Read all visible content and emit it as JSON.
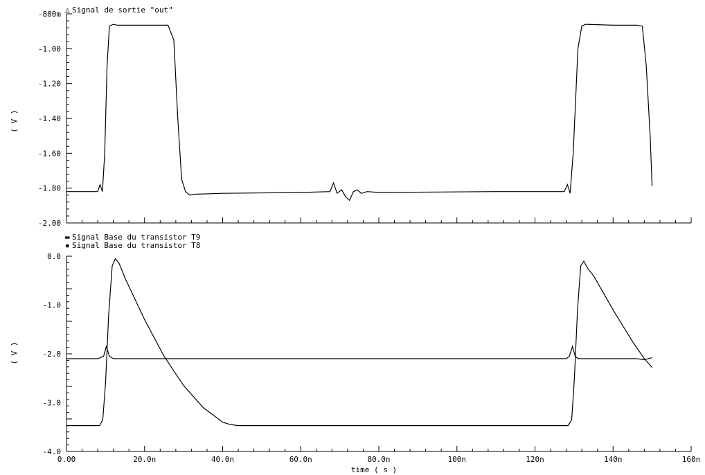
{
  "chart_data": [
    {
      "type": "line",
      "legend": [
        {
          "marker": "△",
          "label": "Signal de sortie \"out\""
        }
      ],
      "ylabel": "( V )",
      "ylim": [
        -2.0,
        -0.8
      ],
      "yticks": [
        {
          "value": -0.8,
          "label": "-800m"
        },
        {
          "value": -1.0,
          "label": "-1.00"
        },
        {
          "value": -1.2,
          "label": "-1.20"
        },
        {
          "value": -1.4,
          "label": "-1.40"
        },
        {
          "value": -1.6,
          "label": "-1.60"
        },
        {
          "value": -1.8,
          "label": "-1.80"
        },
        {
          "value": -2.0,
          "label": "-2.00"
        }
      ],
      "xlim": [
        0,
        160
      ],
      "x_unit": "ns",
      "series": [
        {
          "name": "Signal de sortie \"out\"",
          "x": [
            0,
            8,
            8.6,
            9.2,
            9.8,
            10.4,
            11,
            12,
            13,
            20,
            26,
            27.5,
            28.5,
            29.5,
            30.5,
            31.5,
            33,
            40,
            60,
            67.5,
            68.4,
            69.3,
            70.5,
            71.5,
            72.5,
            73.5,
            74.5,
            75.5,
            77,
            80,
            110,
            127.5,
            128.3,
            129,
            129.8,
            131,
            132,
            133,
            140,
            146,
            147.5,
            148.5,
            149.5,
            150
          ],
          "y": [
            -1.82,
            -1.82,
            -1.78,
            -1.82,
            -1.6,
            -1.1,
            -0.87,
            -0.86,
            -0.865,
            -0.865,
            -0.865,
            -0.95,
            -1.4,
            -1.75,
            -1.82,
            -1.84,
            -1.835,
            -1.83,
            -1.825,
            -1.82,
            -1.77,
            -1.83,
            -1.81,
            -1.85,
            -1.87,
            -1.82,
            -1.81,
            -1.83,
            -1.82,
            -1.825,
            -1.82,
            -1.82,
            -1.78,
            -1.83,
            -1.6,
            -1.0,
            -0.87,
            -0.86,
            -0.865,
            -0.865,
            -0.87,
            -1.1,
            -1.5,
            -1.79
          ]
        }
      ]
    },
    {
      "type": "line",
      "legend": [
        {
          "marker": "▬",
          "label": "Signal Base du transistor T9"
        },
        {
          "marker": "▪",
          "label": "Signal Base du transistor T8"
        }
      ],
      "ylabel": "( V )",
      "xlabel": "time ( s )",
      "ylim": [
        -4.0,
        0.0
      ],
      "yticks": [
        {
          "value": 0,
          "label": "0.0"
        },
        {
          "value": -1,
          "label": "-1.0"
        },
        {
          "value": -2,
          "label": "-2.0"
        },
        {
          "value": -3,
          "label": "-3.0"
        },
        {
          "value": -4,
          "label": "-4.0"
        }
      ],
      "xlim": [
        0,
        160
      ],
      "x_unit": "ns",
      "xticks": [
        {
          "value": 0,
          "label": "0.00"
        },
        {
          "value": 20,
          "label": "20.0n"
        },
        {
          "value": 40,
          "label": "40.0n"
        },
        {
          "value": 60,
          "label": "60.0n"
        },
        {
          "value": 80,
          "label": "80.0n"
        },
        {
          "value": 100,
          "label": "100n"
        },
        {
          "value": 120,
          "label": "120n"
        },
        {
          "value": 140,
          "label": "140n"
        },
        {
          "value": 160,
          "label": "160n"
        }
      ],
      "series": [
        {
          "name": "Signal Base du transistor T9",
          "x": [
            0,
            8,
            9.5,
            10.2,
            11,
            12,
            14,
            20,
            40,
            60,
            80,
            100,
            110,
            120,
            128,
            128.8,
            129.6,
            130.3,
            131,
            133,
            140,
            146,
            148,
            150
          ],
          "y": [
            -2.1,
            -2.1,
            -2.05,
            -1.85,
            -2.05,
            -2.1,
            -2.1,
            -2.1,
            -2.1,
            -2.1,
            -2.1,
            -2.1,
            -2.1,
            -2.1,
            -2.1,
            -2.05,
            -1.85,
            -2.05,
            -2.1,
            -2.1,
            -2.1,
            -2.1,
            -2.12,
            -2.08
          ]
        },
        {
          "name": "Signal Base du transistor T8",
          "x": [
            0,
            8.5,
            9.3,
            10,
            10.8,
            11.7,
            12.5,
            13.5,
            15,
            20,
            25,
            30,
            35,
            40,
            42,
            44,
            50,
            60,
            80,
            100,
            110,
            120,
            128.5,
            129.4,
            130.1,
            130.9,
            131.7,
            132.5,
            133.5,
            135,
            140,
            145,
            148,
            150
          ],
          "y": [
            -3.47,
            -3.47,
            -3.35,
            -2.6,
            -1.2,
            -0.2,
            -0.05,
            -0.15,
            -0.45,
            -1.3,
            -2.05,
            -2.65,
            -3.1,
            -3.4,
            -3.45,
            -3.47,
            -3.47,
            -3.47,
            -3.47,
            -3.47,
            -3.47,
            -3.47,
            -3.47,
            -3.35,
            -2.5,
            -1.1,
            -0.2,
            -0.1,
            -0.25,
            -0.4,
            -1.1,
            -1.75,
            -2.1,
            -2.28
          ]
        }
      ]
    }
  ]
}
